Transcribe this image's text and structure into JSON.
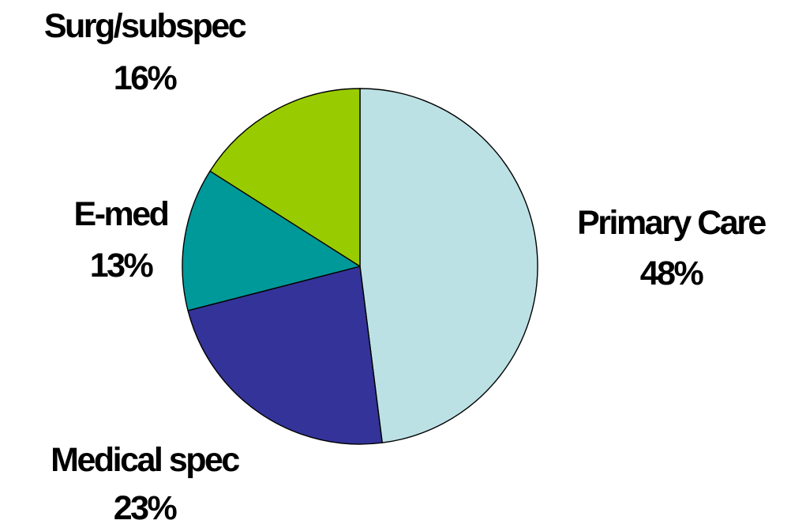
{
  "chart_data": {
    "type": "pie",
    "title": "",
    "slices": [
      {
        "label": "Primary Care",
        "value_label": "48%",
        "value": 48,
        "color": "#BCE1E4"
      },
      {
        "label": "Medical spec",
        "value_label": "23%",
        "value": 23,
        "color": "#333399"
      },
      {
        "label": "E-med",
        "value_label": "13%",
        "value": 13,
        "color": "#009999"
      },
      {
        "label": "Surg/subspec",
        "value_label": "16%",
        "value": 16,
        "color": "#99CC00"
      }
    ],
    "legend": "none"
  }
}
